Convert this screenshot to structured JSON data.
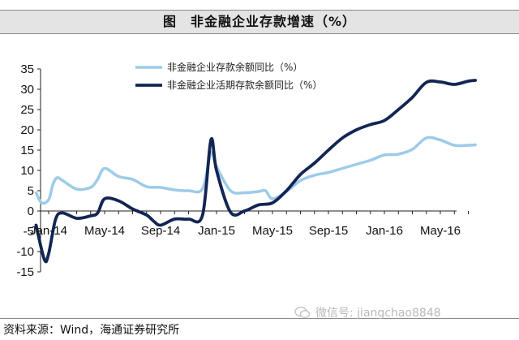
{
  "page": {
    "title": "图　非金融企业存款增速（%）",
    "source": "资料来源：Wind，海通证券研究所",
    "watermark": "微信号: jiangchao8848"
  },
  "chart_data": {
    "type": "line",
    "ylim": [
      -15,
      35
    ],
    "yticks": [
      35,
      30,
      25,
      20,
      15,
      10,
      5,
      0,
      -5,
      -10,
      -15
    ],
    "xticks": [
      {
        "label": "Jan-14",
        "x": 0
      },
      {
        "label": "May-14",
        "x": 4
      },
      {
        "label": "Sep-14",
        "x": 8
      },
      {
        "label": "Jan-15",
        "x": 12
      },
      {
        "label": "May-15",
        "x": 16
      },
      {
        "label": "Sep-15",
        "x": 20
      },
      {
        "label": "Jan-16",
        "x": 24
      },
      {
        "label": "May-16",
        "x": 28
      }
    ],
    "x_max": 29,
    "legend_position": "top",
    "series": [
      {
        "name": "非金融企业存款余额同比（%）",
        "color": "#9dcbe8",
        "values": [
          [
            -0.9,
            4.5
          ],
          [
            -0.5,
            2.0
          ],
          [
            0,
            2.8
          ],
          [
            0.3,
            6.5
          ],
          [
            0.6,
            8.2
          ],
          [
            1,
            7.5
          ],
          [
            2,
            5.4
          ],
          [
            3,
            5.8
          ],
          [
            3.5,
            7.8
          ],
          [
            4,
            10.5
          ],
          [
            5,
            8.5
          ],
          [
            6,
            7.8
          ],
          [
            7,
            6.0
          ],
          [
            8,
            5.8
          ],
          [
            9,
            5.2
          ],
          [
            10,
            5.0
          ],
          [
            11,
            5.5
          ],
          [
            11.6,
            14.3
          ],
          [
            12,
            11.0
          ],
          [
            13,
            5.0
          ],
          [
            14,
            4.5
          ],
          [
            15,
            4.8
          ],
          [
            15.5,
            5.0
          ],
          [
            16,
            3.0
          ],
          [
            17,
            4.8
          ],
          [
            18,
            7.5
          ],
          [
            19,
            8.8
          ],
          [
            20,
            9.5
          ],
          [
            21,
            10.5
          ],
          [
            22,
            11.5
          ],
          [
            23,
            12.5
          ],
          [
            24,
            13.8
          ],
          [
            25,
            14.0
          ],
          [
            26,
            15.2
          ],
          [
            27,
            18.0
          ],
          [
            28,
            17.5
          ],
          [
            29,
            16.2
          ],
          [
            30,
            16.2
          ],
          [
            30.5,
            16.3
          ]
        ]
      },
      {
        "name": "非金融企业活期存款余额同比（%）",
        "color": "#132553",
        "values": [
          [
            -0.9,
            -3.5
          ],
          [
            -0.3,
            -12.0
          ],
          [
            0,
            -10.5
          ],
          [
            0.5,
            -2.0
          ],
          [
            1,
            -0.5
          ],
          [
            2,
            -1.8
          ],
          [
            3,
            -1.2
          ],
          [
            3.5,
            -0.5
          ],
          [
            4,
            3.0
          ],
          [
            5,
            2.5
          ],
          [
            6,
            0.5
          ],
          [
            7,
            -1.0
          ],
          [
            7.5,
            -2.5
          ],
          [
            8,
            -3.5
          ],
          [
            9,
            -2.0
          ],
          [
            10,
            -2.0
          ],
          [
            11,
            -1.0
          ],
          [
            11.6,
            17.5
          ],
          [
            12,
            10.0
          ],
          [
            13,
            -0.3
          ],
          [
            14,
            0.0
          ],
          [
            15,
            1.5
          ],
          [
            16,
            2.0
          ],
          [
            17,
            5.0
          ],
          [
            18,
            9.0
          ],
          [
            19,
            11.8
          ],
          [
            20,
            15.0
          ],
          [
            21,
            18.0
          ],
          [
            22,
            20.0
          ],
          [
            23,
            21.3
          ],
          [
            24,
            22.3
          ],
          [
            25,
            25.0
          ],
          [
            26,
            28.0
          ],
          [
            27,
            31.7
          ],
          [
            28,
            31.8
          ],
          [
            29,
            31.2
          ],
          [
            30,
            32.0
          ],
          [
            30.5,
            32.2
          ]
        ]
      }
    ]
  }
}
